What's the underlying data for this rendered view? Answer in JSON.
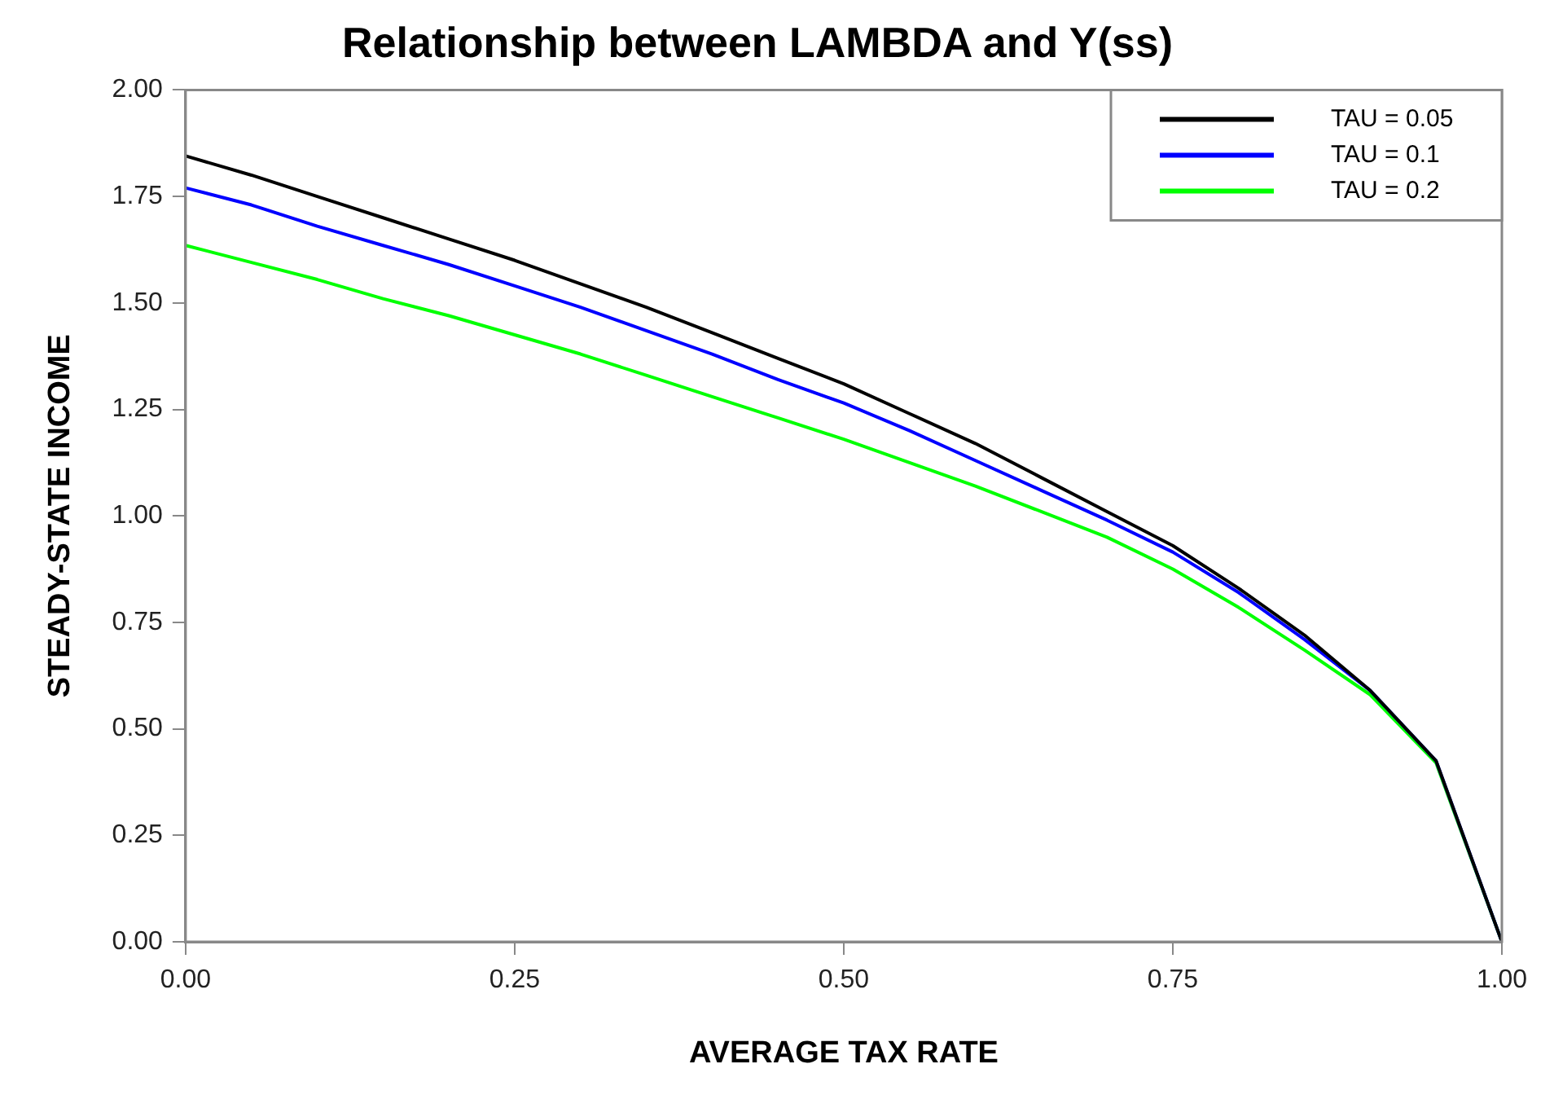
{
  "chart_data": {
    "type": "line",
    "title": "Relationship between LAMBDA and Y(ss)",
    "xlabel": "AVERAGE TAX RATE",
    "ylabel": "STEADY-STATE INCOME",
    "x": [
      0,
      0.05,
      0.1,
      0.15,
      0.2,
      0.25,
      0.3,
      0.35,
      0.4,
      0.45,
      0.5,
      0.55,
      0.6,
      0.65,
      0.7,
      0.75,
      0.8,
      0.85,
      0.9,
      0.95,
      1
    ],
    "series": [
      {
        "name": "TAU = 0.05",
        "color": "#000000",
        "values": [
          1.845,
          1.8,
          1.75,
          1.7,
          1.65,
          1.6,
          1.545,
          1.49,
          1.43,
          1.37,
          1.31,
          1.24,
          1.17,
          1.09,
          1.01,
          0.93,
          0.83,
          0.72,
          0.59,
          0.425,
          0
        ]
      },
      {
        "name": "TAU = 0.1",
        "color": "#0000ff",
        "values": [
          1.77,
          1.73,
          1.68,
          1.635,
          1.59,
          1.54,
          1.49,
          1.435,
          1.38,
          1.32,
          1.265,
          1.2,
          1.13,
          1.06,
          0.99,
          0.915,
          0.82,
          0.71,
          0.59,
          0.425,
          0
        ]
      },
      {
        "name": "TAU = 0.2",
        "color": "#00ff00",
        "values": [
          1.635,
          1.595,
          1.555,
          1.51,
          1.47,
          1.425,
          1.38,
          1.33,
          1.28,
          1.23,
          1.18,
          1.125,
          1.07,
          1.01,
          0.95,
          0.875,
          0.785,
          0.685,
          0.58,
          0.42,
          0
        ]
      }
    ],
    "xlim": [
      0,
      1
    ],
    "xticks": [
      {
        "value": 0,
        "label": "0.00"
      },
      {
        "value": 0.25,
        "label": "0.25"
      },
      {
        "value": 0.5,
        "label": "0.50"
      },
      {
        "value": 0.75,
        "label": "0.75"
      },
      {
        "value": 1,
        "label": "1.00"
      }
    ],
    "ylim": [
      0,
      2
    ],
    "yticks": [
      {
        "value": 0,
        "label": "0.00"
      },
      {
        "value": 0.25,
        "label": "0.25"
      },
      {
        "value": 0.5,
        "label": "0.50"
      },
      {
        "value": 0.75,
        "label": "0.75"
      },
      {
        "value": 1,
        "label": "1.00"
      },
      {
        "value": 1.25,
        "label": "1.25"
      },
      {
        "value": 1.5,
        "label": "1.50"
      },
      {
        "value": 1.75,
        "label": "1.75"
      },
      {
        "value": 2,
        "label": "2.00"
      }
    ],
    "legend": "top right",
    "marker": "none",
    "line_style": "solid"
  }
}
